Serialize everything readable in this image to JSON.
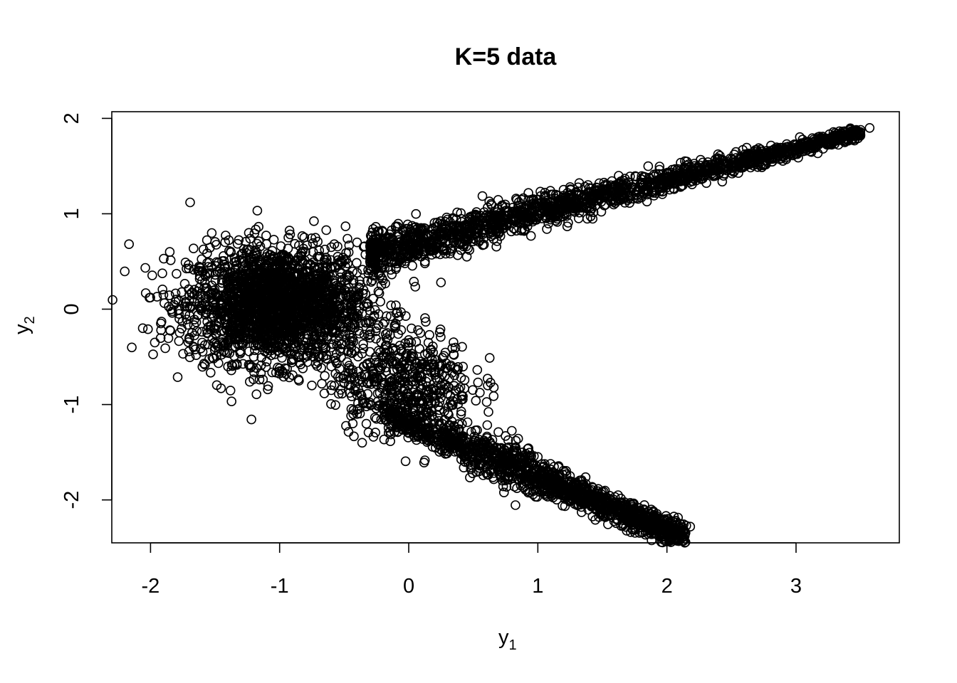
{
  "chart_data": {
    "type": "scatter",
    "title": "K=5 data",
    "xlabel": "y",
    "xlabel_subscript": "1",
    "ylabel": "y",
    "ylabel_subscript": "2",
    "xlim": [
      -2.3,
      3.8
    ],
    "ylim": [
      -2.45,
      2.07
    ],
    "x_ticks": [
      -2,
      -1,
      0,
      1,
      2,
      3
    ],
    "x_tick_labels": [
      "-2",
      "-1",
      "0",
      "1",
      "2",
      "3"
    ],
    "y_ticks": [
      -2,
      -1,
      0,
      1,
      2
    ],
    "y_tick_labels": [
      "-2",
      "-1",
      "0",
      "1",
      "2"
    ],
    "grid": false,
    "legend": "none",
    "marker": "open-circle",
    "colors": {
      "points": "#000000",
      "axes": "#000000",
      "background": "#ffffff"
    },
    "series": [
      {
        "points": [
          [
            3.57,
            1.9
          ],
          [
            3.5,
            1.88
          ],
          [
            3.45,
            1.87
          ],
          [
            3.38,
            1.85
          ],
          [
            3.3,
            1.82
          ],
          [
            3.2,
            1.78
          ],
          [
            3.1,
            1.75
          ],
          [
            3.0,
            1.72
          ],
          [
            2.9,
            1.69
          ],
          [
            2.8,
            1.66
          ],
          [
            2.7,
            1.63
          ],
          [
            2.6,
            1.6
          ],
          [
            2.5,
            1.57
          ],
          [
            2.4,
            1.54
          ],
          [
            2.3,
            1.51
          ],
          [
            2.2,
            1.48
          ],
          [
            2.1,
            1.45
          ],
          [
            2.0,
            1.42
          ],
          [
            1.9,
            1.39
          ],
          [
            1.8,
            1.36
          ],
          [
            1.7,
            1.33
          ],
          [
            1.6,
            1.3
          ],
          [
            1.5,
            1.26
          ],
          [
            1.4,
            1.23
          ],
          [
            1.3,
            1.2
          ],
          [
            1.2,
            1.16
          ],
          [
            1.1,
            1.12
          ],
          [
            1.0,
            1.08
          ],
          [
            0.9,
            1.04
          ],
          [
            0.8,
            1.0
          ],
          [
            0.7,
            0.96
          ],
          [
            0.6,
            0.92
          ],
          [
            0.5,
            0.88
          ],
          [
            0.4,
            0.84
          ],
          [
            0.3,
            0.8
          ],
          [
            0.2,
            0.76
          ],
          [
            0.1,
            0.72
          ],
          [
            0.0,
            0.68
          ],
          [
            -0.1,
            0.64
          ],
          [
            -0.2,
            0.6
          ],
          [
            1.3,
            1.06
          ],
          [
            1.1,
            0.98
          ],
          [
            0.9,
            0.9
          ],
          [
            0.7,
            0.84
          ],
          [
            0.5,
            0.74
          ],
          [
            0.4,
            0.68
          ],
          [
            0.45,
            0.55
          ],
          [
            0.25,
            0.28
          ],
          [
            2.18,
            -2.28
          ],
          [
            2.15,
            -2.27
          ],
          [
            2.1,
            -2.25
          ],
          [
            2.0,
            -2.22
          ],
          [
            1.9,
            -2.18
          ],
          [
            1.8,
            -2.14
          ],
          [
            1.7,
            -2.1
          ],
          [
            1.6,
            -2.06
          ],
          [
            1.5,
            -2.02
          ],
          [
            1.4,
            -1.98
          ],
          [
            1.3,
            -1.95
          ],
          [
            1.2,
            -1.92
          ],
          [
            1.1,
            -1.88
          ],
          [
            1.0,
            -1.84
          ],
          [
            0.9,
            -1.8
          ],
          [
            0.8,
            -1.75
          ],
          [
            0.7,
            -1.7
          ],
          [
            0.6,
            -1.65
          ],
          [
            0.5,
            -1.58
          ],
          [
            0.4,
            -1.5
          ],
          [
            0.3,
            -1.42
          ],
          [
            0.2,
            -1.35
          ],
          [
            0.1,
            -1.28
          ],
          [
            0.0,
            -1.2
          ],
          [
            -0.1,
            -1.12
          ],
          [
            -0.2,
            -1.05
          ],
          [
            -0.3,
            -0.98
          ],
          [
            -0.4,
            -0.9
          ],
          [
            -0.45,
            -0.8
          ],
          [
            -0.5,
            -0.7
          ],
          [
            0.75,
            -1.33
          ],
          [
            0.6,
            -1.45
          ],
          [
            0.52,
            -0.96
          ],
          [
            0.35,
            -0.48
          ],
          [
            0.25,
            -0.6
          ],
          [
            0.15,
            -0.58
          ],
          [
            0.25,
            -0.85
          ],
          [
            0.05,
            -0.68
          ],
          [
            -0.05,
            -0.75
          ],
          [
            -0.1,
            0.04
          ],
          [
            -0.25,
            -0.2
          ],
          [
            -0.15,
            -0.45
          ],
          [
            -0.3,
            -0.3
          ],
          [
            -0.2,
            0.3
          ],
          [
            -0.1,
            0.42
          ],
          [
            -0.35,
            0.2
          ],
          [
            -0.3,
            0.5
          ],
          [
            -0.4,
            0.1
          ],
          [
            -0.55,
            0.55
          ],
          [
            -0.45,
            -0.3
          ],
          [
            -0.35,
            -0.6
          ],
          [
            -0.4,
            -1.1
          ],
          [
            -0.25,
            -1.15
          ],
          [
            -0.6,
            -0.85
          ],
          [
            -0.75,
            -0.8
          ],
          [
            -1.0,
            -0.65
          ],
          [
            -0.5,
            0.2
          ],
          [
            -0.6,
            0.0
          ],
          [
            -0.7,
            -0.2
          ],
          [
            -0.8,
            0.4
          ],
          [
            -0.9,
            0.2
          ],
          [
            -1.0,
            0.0
          ],
          [
            -1.1,
            0.3
          ],
          [
            -1.2,
            0.1
          ],
          [
            -1.3,
            -0.1
          ],
          [
            -1.4,
            0.2
          ],
          [
            -1.5,
            0.05
          ],
          [
            -1.6,
            0.3
          ],
          [
            -1.7,
            0.15
          ],
          [
            -1.8,
            0.1
          ],
          [
            -1.9,
            0.15
          ],
          [
            -1.95,
            0.13
          ],
          [
            -2.06,
            -0.2
          ],
          [
            -2.02,
            -0.21
          ],
          [
            -1.92,
            -0.15
          ],
          [
            -1.85,
            -0.22
          ],
          [
            -1.78,
            -0.05
          ],
          [
            -1.7,
            -0.3
          ],
          [
            -1.6,
            -0.35
          ],
          [
            -1.5,
            -0.4
          ],
          [
            -1.4,
            -0.35
          ],
          [
            -1.3,
            -0.45
          ],
          [
            -1.2,
            -0.5
          ],
          [
            -1.1,
            -0.55
          ],
          [
            -0.95,
            -0.68
          ],
          [
            -0.85,
            -0.75
          ],
          [
            -0.7,
            -0.5
          ],
          [
            -0.6,
            -0.6
          ],
          [
            -1.2,
            0.5
          ],
          [
            -1.0,
            0.55
          ],
          [
            -0.8,
            0.6
          ],
          [
            -0.6,
            0.65
          ],
          [
            -0.4,
            0.7
          ],
          [
            -1.4,
            0.45
          ],
          [
            -1.6,
            0.4
          ],
          [
            -1.5,
            -0.2
          ],
          [
            -0.9,
            -0.3
          ],
          [
            -1.1,
            -0.2
          ],
          [
            -0.7,
            0.1
          ],
          [
            -0.55,
            -0.15
          ],
          [
            -0.65,
            0.35
          ],
          [
            -1.3,
            0.35
          ],
          [
            -0.2,
            0.6
          ],
          [
            0.0,
            -1.3
          ]
        ],
        "cloud_regions": [
          {
            "x": [
              -1.7,
              -0.35
            ],
            "y": [
              -0.55,
              0.65
            ],
            "count": 2200
          },
          {
            "x": [
              -0.6,
              0.5
            ],
            "y": [
              -1.3,
              -0.2
            ],
            "count": 500
          },
          {
            "x": [
              -0.3,
              3.5
            ],
            "y": [
              0.6,
              1.88
            ],
            "count": 1800,
            "band": "upper-arm"
          },
          {
            "x": [
              -0.2,
              2.15
            ],
            "y": [
              -2.26,
              -0.9
            ],
            "count": 1500,
            "band": "lower-arm"
          }
        ]
      }
    ]
  }
}
